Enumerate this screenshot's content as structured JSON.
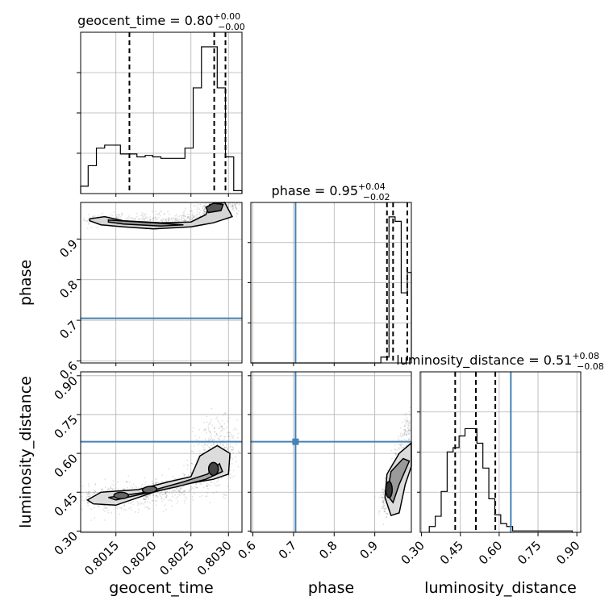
{
  "chart_data": {
    "type": "corner",
    "params": [
      "geocent_time",
      "phase",
      "luminosity_distance"
    ],
    "truth_color": "#4682b4",
    "titles": [
      {
        "name": "geocent_time",
        "value": "0.80",
        "plus": "+0.00",
        "minus": "−0.00"
      },
      {
        "name": "phase",
        "value": "0.95",
        "plus": "+0.04",
        "minus": "−0.02"
      },
      {
        "name": "luminosity_distance",
        "value": "0.51",
        "plus": "+0.08",
        "minus": "−0.08"
      }
    ],
    "axis_labels": {
      "geocent_time": "geocent_time",
      "phase": "phase",
      "luminosity_distance": "luminosity_distance"
    },
    "ranges": {
      "geocent_time": [
        0.80103,
        0.80318
      ],
      "phase": [
        0.595,
        0.99
      ],
      "luminosity_distance": [
        0.295,
        0.915
      ]
    },
    "ticks": {
      "geocent_time": [
        "0.8015",
        "0.8020",
        "0.8025",
        "0.8030"
      ],
      "phase": [
        "0.6",
        "0.7",
        "0.8",
        "0.9"
      ],
      "luminosity_distance": [
        "0.30",
        "0.45",
        "0.60",
        "0.75",
        "0.90"
      ]
    },
    "phase_row_ticks": [
      "0.6",
      "0.7",
      "0.8",
      "0.9"
    ],
    "truths": {
      "phase": 0.705,
      "luminosity_distance": 0.645
    },
    "quantiles": {
      "geocent_time": [
        0.80168,
        0.80281,
        0.80296
      ],
      "phase": [
        0.93,
        0.945,
        0.98
      ],
      "luminosity_distance": [
        0.43,
        0.51,
        0.585
      ]
    },
    "histograms": {
      "geocent_time": {
        "edges": [
          0.80103,
          0.80113,
          0.80124,
          0.80135,
          0.80146,
          0.80156,
          0.80167,
          0.80178,
          0.80189,
          0.80199,
          0.8021,
          0.80221,
          0.80232,
          0.80242,
          0.80253,
          0.80264,
          0.80275,
          0.80285,
          0.80296,
          0.80307,
          0.80318
        ],
        "counts": [
          0.05,
          0.19,
          0.31,
          0.33,
          0.33,
          0.27,
          0.27,
          0.25,
          0.26,
          0.25,
          0.24,
          0.24,
          0.24,
          0.31,
          0.72,
          1.0,
          1.0,
          0.72,
          0.25,
          0.02
        ]
      },
      "phase": {
        "edges": [
          0.595,
          0.615,
          0.635,
          0.655,
          0.675,
          0.695,
          0.715,
          0.735,
          0.755,
          0.775,
          0.795,
          0.815,
          0.835,
          0.855,
          0.875,
          0.895,
          0.915,
          0.935,
          0.95,
          0.965,
          0.98,
          0.99
        ],
        "counts": [
          0,
          0,
          0,
          0,
          0,
          0,
          0,
          0,
          0,
          0,
          0,
          0,
          0,
          0,
          0,
          0,
          0.04,
          1.0,
          0.97,
          0.48,
          0.62
        ]
      },
      "luminosity_distance": {
        "edges": [
          0.33,
          0.353,
          0.376,
          0.399,
          0.422,
          0.445,
          0.468,
          0.491,
          0.514,
          0.537,
          0.56,
          0.583,
          0.606,
          0.629,
          0.652,
          0.675,
          0.698,
          0.721,
          0.744,
          0.767,
          0.79,
          0.813,
          0.836,
          0.859,
          0.882
        ],
        "counts": [
          0.04,
          0.11,
          0.28,
          0.55,
          0.58,
          0.66,
          0.71,
          0.71,
          0.61,
          0.44,
          0.23,
          0.12,
          0.06,
          0.04,
          0.01,
          0.01,
          0.01,
          0.01,
          0.01,
          0.01,
          0.01,
          0.01,
          0.01,
          0.01
        ]
      }
    },
    "grid": true
  }
}
